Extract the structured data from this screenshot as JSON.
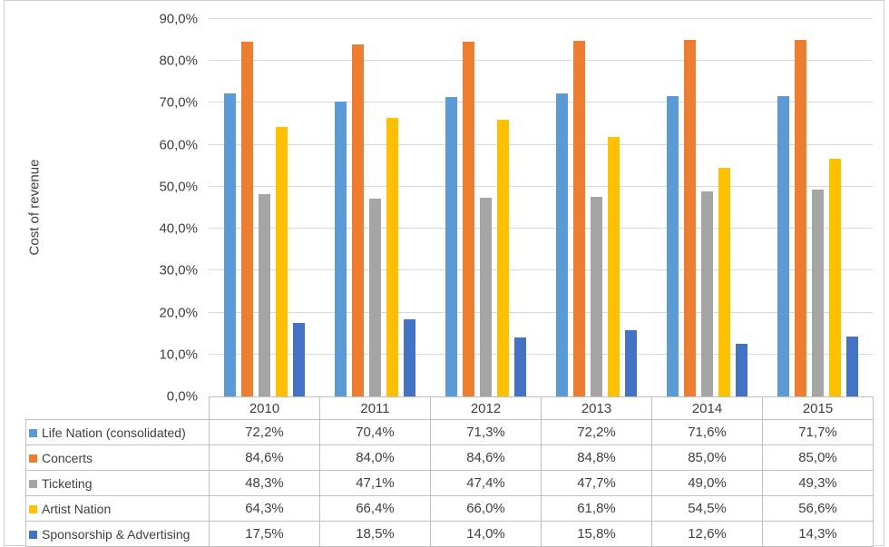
{
  "chart_data": {
    "type": "bar",
    "title": "",
    "xlabel": "",
    "ylabel": "Cost of revenue",
    "ylim": [
      0,
      90
    ],
    "ytick_step": 10,
    "ytick_labels_bottom_up": [
      "0,0%",
      "10,0%",
      "20,0%",
      "30,0%",
      "40,0%",
      "50,0%",
      "60,0%",
      "70,0%",
      "80,0%",
      "90,0%"
    ],
    "grid": true,
    "legend_position": "data-table-left-column",
    "categories": [
      "2010",
      "2011",
      "2012",
      "2013",
      "2014",
      "2015"
    ],
    "series": [
      {
        "name": "Life Nation (consolidated)",
        "color": "#5B9BD5",
        "values": [
          72.2,
          70.4,
          71.3,
          72.2,
          71.6,
          71.7
        ],
        "display": [
          "72,2%",
          "70,4%",
          "71,3%",
          "72,2%",
          "71,6%",
          "71,7%"
        ]
      },
      {
        "name": "Concerts",
        "color": "#ED7D31",
        "values": [
          84.6,
          84.0,
          84.6,
          84.8,
          85.0,
          85.0
        ],
        "display": [
          "84,6%",
          "84,0%",
          "84,6%",
          "84,8%",
          "85,0%",
          "85,0%"
        ]
      },
      {
        "name": "Ticketing",
        "color": "#A5A5A5",
        "values": [
          48.3,
          47.1,
          47.4,
          47.7,
          49.0,
          49.3
        ],
        "display": [
          "48,3%",
          "47,1%",
          "47,4%",
          "47,7%",
          "49,0%",
          "49,3%"
        ]
      },
      {
        "name": "Artist Nation",
        "color": "#FFC000",
        "values": [
          64.3,
          66.4,
          66.0,
          61.8,
          54.5,
          56.6
        ],
        "display": [
          "64,3%",
          "66,4%",
          "66,0%",
          "61,8%",
          "54,5%",
          "56,6%"
        ]
      },
      {
        "name": "Sponsorship & Advertising",
        "color": "#4472C4",
        "values": [
          17.5,
          18.5,
          14.0,
          15.8,
          12.6,
          14.3
        ],
        "display": [
          "17,5%",
          "18,5%",
          "14,0%",
          "15,8%",
          "12,6%",
          "14,3%"
        ]
      }
    ],
    "colors": {
      "gridline": "#d9d9d9",
      "table_border": "#bfbfbf",
      "text": "#404040",
      "frame_border": "#cfcfcf"
    }
  }
}
